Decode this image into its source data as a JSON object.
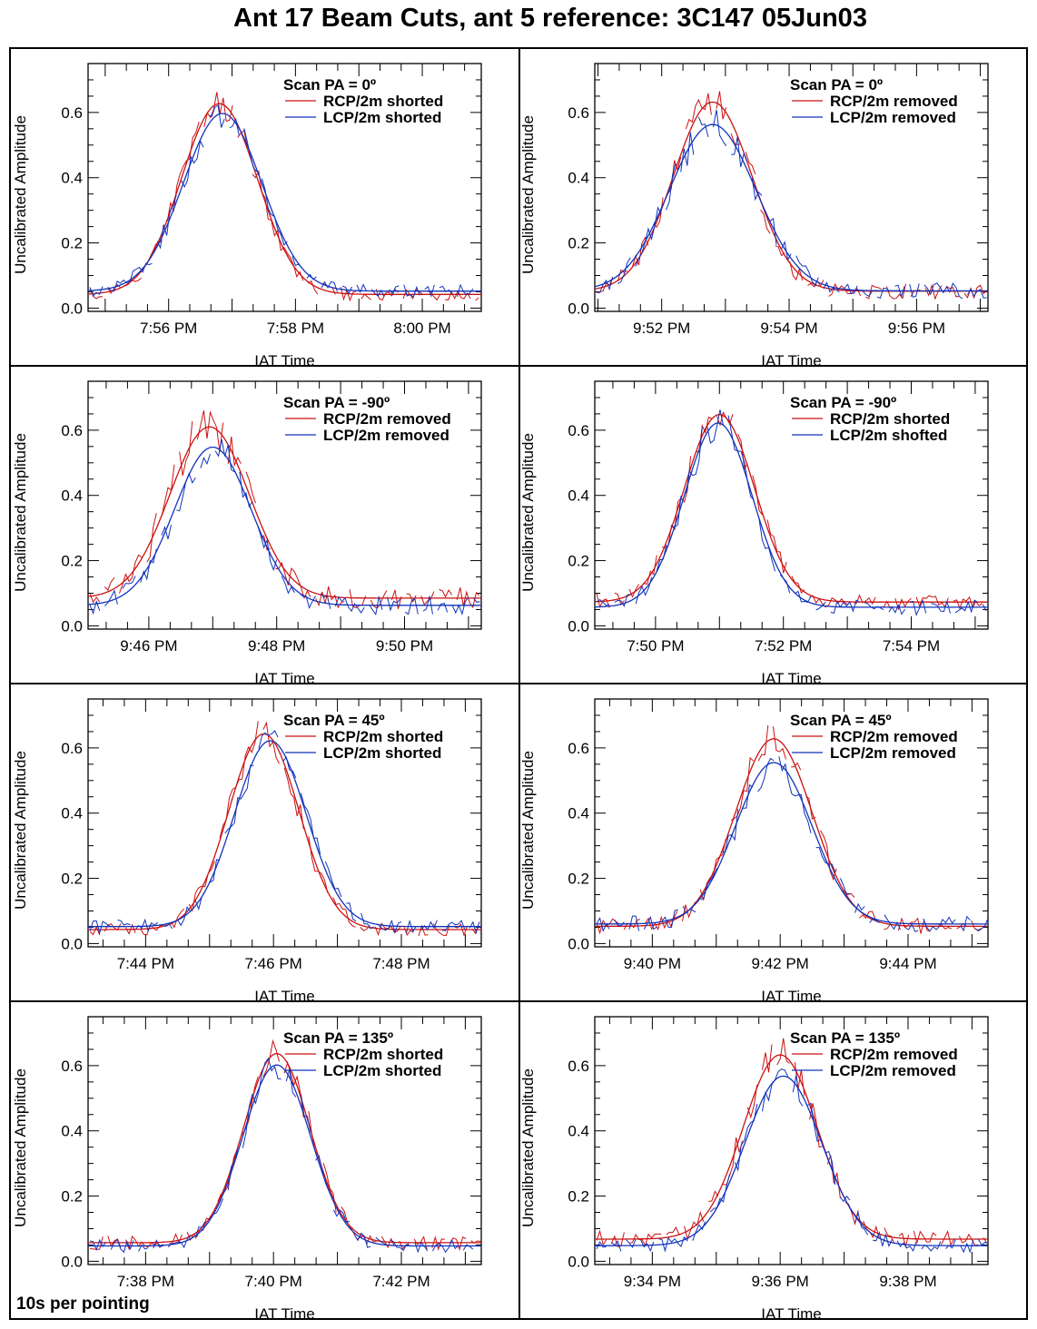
{
  "title": "Ant 17 Beam Cuts, ant 5 reference: 3C147 05Jun03",
  "footnote": "10s per pointing",
  "colors": {
    "rcp": "#cc1111",
    "lcp": "#1133bb",
    "axis": "#000000"
  },
  "chart_data": [
    {
      "type": "line",
      "panel": "row1-left",
      "legend_title": "Scan PA = 0º",
      "xlabel": "IAT Time",
      "ylabel": "Uncalibrated Amplitude",
      "ylim": [
        -0.01,
        0.75
      ],
      "yticks": [
        "0.0",
        "0.2",
        "0.4",
        "0.6"
      ],
      "x_start_min": 474.73,
      "x_end_min": 480.93,
      "xtick_labels": [
        {
          "t": 476,
          "label": "7:56 PM"
        },
        {
          "t": 478,
          "label": "7:58 PM"
        },
        {
          "t": 480,
          "label": "8:00 PM"
        }
      ],
      "legend_position": "top-right",
      "series": [
        {
          "name": "RCP/2m shorted",
          "color_key": "rcp",
          "fit": {
            "peak_time": 476.8,
            "amplitude": 0.585,
            "sigma": 0.6,
            "baseline": 0.042
          },
          "noise": 0.03,
          "seed": 11
        },
        {
          "name": "LCP/2m shorted",
          "color_key": "lcp",
          "fit": {
            "peak_time": 476.85,
            "amplitude": 0.545,
            "sigma": 0.62,
            "baseline": 0.052
          },
          "noise": 0.03,
          "seed": 12
        }
      ]
    },
    {
      "type": "line",
      "panel": "row1-right",
      "legend_title": "Scan PA = 0º",
      "xlabel": "IAT Time",
      "ylabel": "Uncalibrated Amplitude",
      "ylim": [
        -0.01,
        0.75
      ],
      "yticks": [
        "0.0",
        "0.2",
        "0.4",
        "0.6"
      ],
      "x_start_min": 590.95,
      "x_end_min": 597.12,
      "xtick_labels": [
        {
          "t": 592,
          "label": "9:52 PM"
        },
        {
          "t": 594,
          "label": "9:54 PM"
        },
        {
          "t": 596,
          "label": "9:56 PM"
        }
      ],
      "legend_position": "top-right",
      "series": [
        {
          "name": "RCP/2m removed",
          "color_key": "rcp",
          "fit": {
            "peak_time": 592.8,
            "amplitude": 0.58,
            "sigma": 0.62,
            "baseline": 0.052
          },
          "noise": 0.035,
          "seed": 21
        },
        {
          "name": "LCP/2m removed",
          "color_key": "lcp",
          "fit": {
            "peak_time": 592.8,
            "amplitude": 0.51,
            "sigma": 0.68,
            "baseline": 0.053
          },
          "noise": 0.035,
          "seed": 22
        }
      ]
    },
    {
      "type": "line",
      "panel": "row2-left",
      "legend_title": "Scan PA = -90º",
      "xlabel": "IAT Time",
      "ylabel": "Uncalibrated Amplitude",
      "ylim": [
        -0.01,
        0.75
      ],
      "yticks": [
        "0.0",
        "0.2",
        "0.4",
        "0.6"
      ],
      "x_start_min": 585.05,
      "x_end_min": 591.2,
      "xtick_labels": [
        {
          "t": 586,
          "label": "9:46 PM"
        },
        {
          "t": 588,
          "label": "9:48 PM"
        },
        {
          "t": 590,
          "label": "9:50 PM"
        }
      ],
      "legend_position": "top-right",
      "series": [
        {
          "name": "RCP/2m removed",
          "color_key": "rcp",
          "fit": {
            "peak_time": 586.95,
            "amplitude": 0.525,
            "sigma": 0.62,
            "baseline": 0.085
          },
          "noise": 0.045,
          "seed": 31
        },
        {
          "name": "LCP/2m removed",
          "color_key": "lcp",
          "fit": {
            "peak_time": 587.0,
            "amplitude": 0.485,
            "sigma": 0.6,
            "baseline": 0.063
          },
          "noise": 0.04,
          "seed": 32
        }
      ]
    },
    {
      "type": "line",
      "panel": "row2-right",
      "legend_title": "Scan PA = -90º",
      "xlabel": "IAT Time",
      "ylabel": "Uncalibrated Amplitude",
      "ylim": [
        -0.01,
        0.75
      ],
      "yticks": [
        "0.0",
        "0.2",
        "0.4",
        "0.6"
      ],
      "x_start_min": 469.05,
      "x_end_min": 475.2,
      "xtick_labels": [
        {
          "t": 470,
          "label": "7:50 PM"
        },
        {
          "t": 472,
          "label": "7:52 PM"
        },
        {
          "t": 474,
          "label": "7:54 PM"
        }
      ],
      "legend_position": "top-right",
      "series": [
        {
          "name": "RCP/2m shorted",
          "color_key": "rcp",
          "fit": {
            "peak_time": 471.0,
            "amplitude": 0.575,
            "sigma": 0.55,
            "baseline": 0.073
          },
          "noise": 0.035,
          "seed": 41
        },
        {
          "name": "LCP/2m shofted",
          "color_key": "lcp",
          "fit": {
            "peak_time": 470.98,
            "amplitude": 0.565,
            "sigma": 0.53,
            "baseline": 0.057
          },
          "noise": 0.035,
          "seed": 42
        }
      ]
    },
    {
      "type": "line",
      "panel": "row3-left",
      "legend_title": "Scan PA = 45º",
      "xlabel": "IAT Time",
      "ylabel": "Uncalibrated Amplitude",
      "ylim": [
        -0.01,
        0.75
      ],
      "yticks": [
        "0.0",
        "0.2",
        "0.4",
        "0.6"
      ],
      "x_start_min": 463.1,
      "x_end_min": 469.25,
      "xtick_labels": [
        {
          "t": 464,
          "label": "7:44 PM"
        },
        {
          "t": 466,
          "label": "7:46 PM"
        },
        {
          "t": 468,
          "label": "7:48 PM"
        }
      ],
      "legend_position": "top-right",
      "series": [
        {
          "name": "RCP/2m shorted",
          "color_key": "rcp",
          "fit": {
            "peak_time": 465.85,
            "amplitude": 0.6,
            "sigma": 0.55,
            "baseline": 0.043
          },
          "noise": 0.03,
          "seed": 51
        },
        {
          "name": "LCP/2m shorted",
          "color_key": "lcp",
          "fit": {
            "peak_time": 465.95,
            "amplitude": 0.57,
            "sigma": 0.56,
            "baseline": 0.052
          },
          "noise": 0.03,
          "seed": 52
        }
      ]
    },
    {
      "type": "line",
      "panel": "row3-right",
      "legend_title": "Scan PA = 45º",
      "xlabel": "IAT Time",
      "ylabel": "Uncalibrated Amplitude",
      "ylim": [
        -0.01,
        0.75
      ],
      "yticks": [
        "0.0",
        "0.2",
        "0.4",
        "0.6"
      ],
      "x_start_min": 579.1,
      "x_end_min": 585.25,
      "xtick_labels": [
        {
          "t": 580,
          "label": "9:40 PM"
        },
        {
          "t": 582,
          "label": "9:42 PM"
        },
        {
          "t": 584,
          "label": "9:44 PM"
        }
      ],
      "legend_position": "top-right",
      "series": [
        {
          "name": "RCP/2m removed",
          "color_key": "rcp",
          "fit": {
            "peak_time": 581.9,
            "amplitude": 0.575,
            "sigma": 0.6,
            "baseline": 0.053
          },
          "noise": 0.035,
          "seed": 61
        },
        {
          "name": "LCP/2m removed",
          "color_key": "lcp",
          "fit": {
            "peak_time": 581.9,
            "amplitude": 0.495,
            "sigma": 0.6,
            "baseline": 0.06
          },
          "noise": 0.035,
          "seed": 62
        }
      ]
    },
    {
      "type": "line",
      "panel": "row4-left",
      "legend_title": "Scan PA = 135º",
      "xlabel": "IAT Time",
      "ylabel": "Uncalibrated Amplitude",
      "ylim": [
        -0.01,
        0.75
      ],
      "yticks": [
        "0.0",
        "0.2",
        "0.4",
        "0.6"
      ],
      "x_start_min": 457.1,
      "x_end_min": 463.25,
      "xtick_labels": [
        {
          "t": 458,
          "label": "7:38 PM"
        },
        {
          "t": 460,
          "label": "7:40 PM"
        },
        {
          "t": 462,
          "label": "7:42 PM"
        }
      ],
      "legend_position": "top-right",
      "series": [
        {
          "name": "RCP/2m shorted",
          "color_key": "rcp",
          "fit": {
            "peak_time": 460.05,
            "amplitude": 0.58,
            "sigma": 0.52,
            "baseline": 0.057
          },
          "noise": 0.03,
          "seed": 71
        },
        {
          "name": "LCP/2m shorted",
          "color_key": "lcp",
          "fit": {
            "peak_time": 460.05,
            "amplitude": 0.555,
            "sigma": 0.53,
            "baseline": 0.047
          },
          "noise": 0.03,
          "seed": 72
        }
      ]
    },
    {
      "type": "line",
      "panel": "row4-right",
      "legend_title": "Scan PA = 135º",
      "xlabel": "IAT Time",
      "ylabel": "Uncalibrated Amplitude",
      "ylim": [
        -0.01,
        0.75
      ],
      "yticks": [
        "0.0",
        "0.2",
        "0.4",
        "0.6"
      ],
      "x_start_min": 573.1,
      "x_end_min": 579.25,
      "xtick_labels": [
        {
          "t": 574,
          "label": "9:34 PM"
        },
        {
          "t": 576,
          "label": "9:36 PM"
        },
        {
          "t": 578,
          "label": "9:38 PM"
        }
      ],
      "legend_position": "top-right",
      "series": [
        {
          "name": "RCP/2m removed",
          "color_key": "rcp",
          "fit": {
            "peak_time": 576.0,
            "amplitude": 0.565,
            "sigma": 0.58,
            "baseline": 0.068
          },
          "noise": 0.035,
          "seed": 81
        },
        {
          "name": "LCP/2m removed",
          "color_key": "lcp",
          "fit": {
            "peak_time": 576.05,
            "amplitude": 0.52,
            "sigma": 0.6,
            "baseline": 0.048
          },
          "noise": 0.03,
          "seed": 82
        }
      ]
    }
  ]
}
